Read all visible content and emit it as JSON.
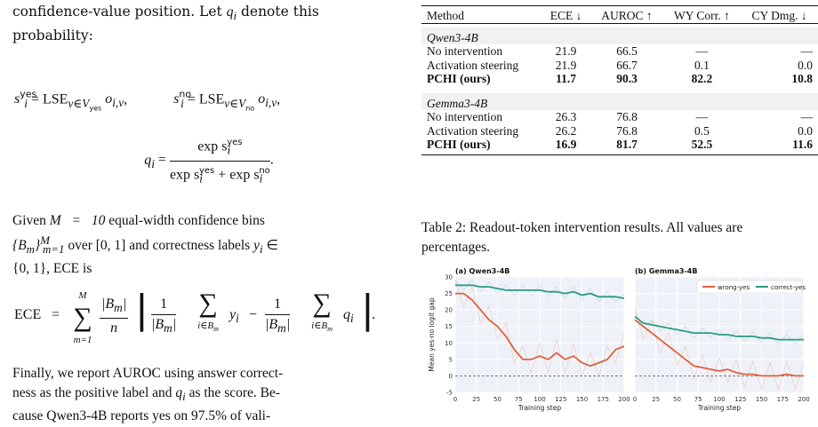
{
  "left": {
    "p1": "confidence-value position. Let",
    "p1_var": "q",
    "p1_sub": "i",
    "p1_end": "denote this probability:",
    "eq1_yes": "s",
    "eq1_yes_sup": "yes",
    "eq1_yes_sub": "i",
    "eq1_lse": "LSE",
    "eq1_set_yes": "v∈V",
    "eq1_set_yes_sub": "yes",
    "eq1_term": "o",
    "eq1_term_sub": "i,v",
    "eq1_no_sup": "no",
    "eq1_set_no_sub": "no",
    "eq2_lhs": "q",
    "eq2_num": "exp s",
    "eq2_den": "exp s",
    "eq2_den2": " + exp s",
    "p2_given": "Given",
    "p2_M": "M = 10",
    "p2_mid": "equal-width confidence bins",
    "p2_bins": "{B",
    "p2_range": "over [0, 1] and correctness labels",
    "p2_y": "y",
    "p2_in": "∈",
    "p2_set": "{0, 1}, ECE is",
    "eq3_lhs": "ECE",
    "eq3_sum_top": "M",
    "eq3_sum_bot": "m=1",
    "eq3_num": "|B",
    "eq3_den": "n",
    "eq3_one": "1",
    "eq3_sumi": "i∈B",
    "eq3_yi": "y",
    "eq3_qi": "q",
    "p3_line1": "Finally, we report AUROC using answer correct-",
    "p3_line2": "ness as the positive label and",
    "p3_line2b": "as the score. Be-",
    "p3_line3": "cause Qwen3-4B reports yes on 97.5% of vali-"
  },
  "table": {
    "headers": [
      "Method",
      "ECE ↓",
      "AUROC ↑",
      "WY Corr. ↑",
      "CY Dmg. ↓"
    ],
    "groups": [
      {
        "name": "Qwen3-4B",
        "rows": [
          {
            "method": "No intervention",
            "ece": "21.9",
            "auroc": "66.5",
            "wy": "—",
            "cy": "—",
            "bold": false
          },
          {
            "method": "Activation steering",
            "ece": "21.9",
            "auroc": "66.7",
            "wy": "0.1",
            "cy": "0.0",
            "bold": false
          },
          {
            "method": "PCHI (ours)",
            "ece": "11.7",
            "auroc": "90.3",
            "wy": "82.2",
            "cy": "10.8",
            "bold": true
          }
        ]
      },
      {
        "name": "Gemma3-4B",
        "rows": [
          {
            "method": "No intervention",
            "ece": "26.3",
            "auroc": "76.8",
            "wy": "—",
            "cy": "—",
            "bold": false
          },
          {
            "method": "Activation steering",
            "ece": "26.2",
            "auroc": "76.8",
            "wy": "0.5",
            "cy": "0.0",
            "bold": false
          },
          {
            "method": "PCHI (ours)",
            "ece": "16.9",
            "auroc": "81.7",
            "wy": "52.5",
            "cy": "11.6",
            "bold": true
          }
        ]
      }
    ],
    "caption": "Table 2: Readout-token intervention results. All values are percentages."
  },
  "chart_data": [
    {
      "type": "line",
      "title": "(a) Qwen3-4B",
      "xlabel": "Training step",
      "ylabel": "Mean yes-no logit gap",
      "xlim": [
        0,
        200
      ],
      "ylim": [
        -5,
        30
      ],
      "xticks": [
        "0",
        "25",
        "50",
        "75",
        "100",
        "125",
        "150",
        "175",
        "200"
      ],
      "yticks": [
        "-5",
        "0",
        "5",
        "10",
        "15",
        "20",
        "25",
        "30"
      ],
      "grid": true,
      "reference_line": 0,
      "series": [
        {
          "name": "wrong-yes",
          "color": "#e0603c",
          "x": [
            0,
            10,
            20,
            30,
            40,
            50,
            60,
            70,
            80,
            90,
            100,
            110,
            120,
            130,
            140,
            150,
            160,
            170,
            180,
            190,
            200
          ],
          "y": [
            25,
            25,
            23,
            20,
            17,
            15,
            12,
            8,
            5,
            5,
            6,
            5,
            7,
            5,
            6,
            4,
            3,
            4,
            5,
            8,
            9
          ]
        },
        {
          "name": "correct-yes",
          "color": "#2a9a86",
          "x": [
            0,
            10,
            20,
            30,
            40,
            50,
            60,
            70,
            80,
            90,
            100,
            110,
            120,
            130,
            140,
            150,
            160,
            170,
            180,
            190,
            200
          ],
          "y": [
            27.5,
            27.5,
            27.5,
            27,
            27,
            26.5,
            26,
            26,
            26,
            26,
            26,
            25.5,
            25.5,
            25,
            25.5,
            24.5,
            25,
            24,
            24,
            24,
            23.5
          ]
        }
      ]
    },
    {
      "type": "line",
      "title": "(b) Gemma3-4B",
      "xlabel": "Training step",
      "xlim": [
        0,
        200
      ],
      "ylim": [
        -5,
        30
      ],
      "xticks": [
        "0",
        "25",
        "50",
        "75",
        "100",
        "125",
        "150",
        "175",
        "200"
      ],
      "grid": true,
      "legend": "top-right",
      "reference_line": 0,
      "series": [
        {
          "name": "wrong-yes",
          "color": "#e0603c",
          "x": [
            0,
            10,
            20,
            30,
            40,
            50,
            60,
            70,
            80,
            90,
            100,
            110,
            120,
            130,
            140,
            150,
            160,
            170,
            180,
            190,
            200
          ],
          "y": [
            17,
            15,
            13,
            11,
            9,
            7,
            5,
            3,
            2.5,
            2,
            1.5,
            2,
            1,
            0.5,
            0.5,
            0,
            0,
            0,
            0.5,
            0,
            0
          ]
        },
        {
          "name": "correct-yes",
          "color": "#2a9a86",
          "x": [
            0,
            10,
            20,
            30,
            40,
            50,
            60,
            70,
            80,
            90,
            100,
            110,
            120,
            130,
            140,
            150,
            160,
            170,
            180,
            190,
            200
          ],
          "y": [
            18,
            16,
            15.5,
            15,
            14.5,
            14,
            13.5,
            13,
            13,
            13,
            12.5,
            12.5,
            12,
            12,
            12,
            11.5,
            11.5,
            11,
            11,
            11,
            11
          ]
        }
      ]
    }
  ]
}
